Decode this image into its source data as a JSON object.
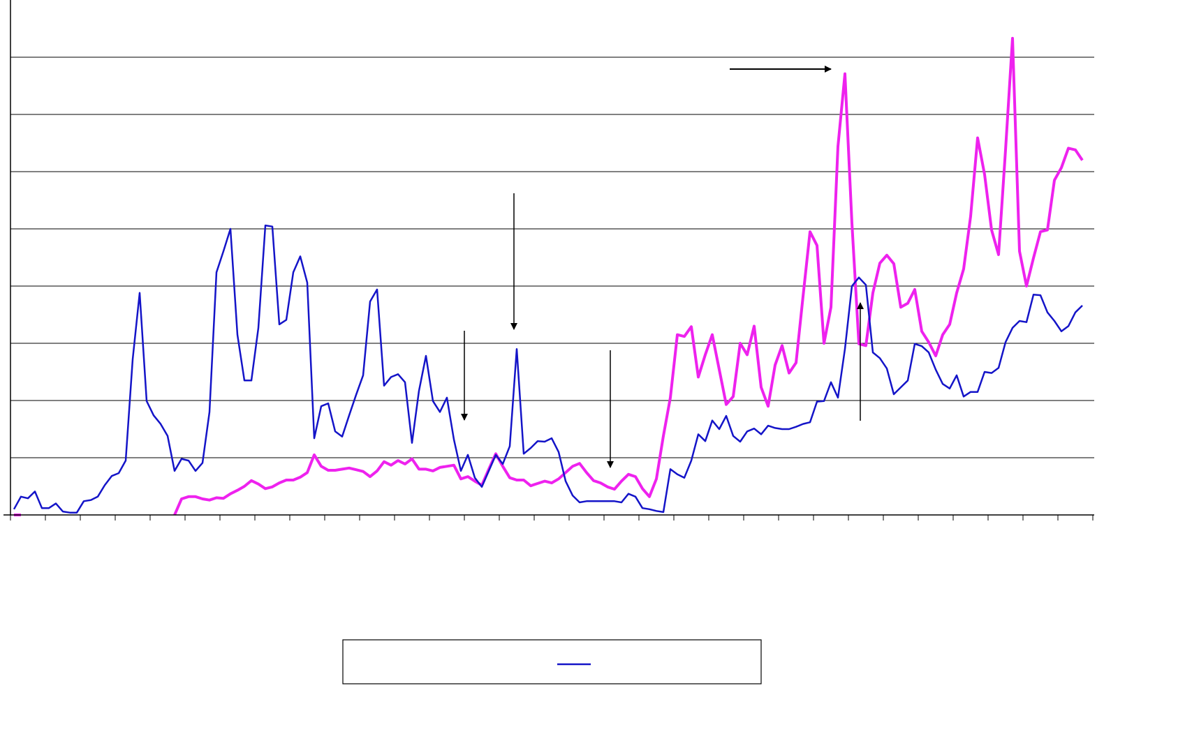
{
  "chart_data": {
    "type": "line",
    "x": [
      0,
      1,
      2,
      3,
      4,
      5,
      6,
      7,
      8,
      9,
      10,
      11,
      12,
      13,
      14,
      15,
      16,
      17,
      18,
      19,
      20,
      21,
      22,
      23,
      24,
      25,
      26,
      27,
      28,
      29,
      30,
      31,
      32,
      33,
      34,
      35,
      36,
      37,
      38,
      39,
      40,
      41,
      42,
      43,
      44,
      45,
      46,
      47,
      48,
      49,
      50,
      51,
      52,
      53,
      54,
      55,
      56,
      57,
      58,
      59,
      60,
      61,
      62,
      63,
      64,
      65,
      66,
      67,
      68,
      69,
      70,
      71,
      72,
      73,
      74,
      75,
      76,
      77,
      78,
      79,
      80,
      81,
      82,
      83,
      84,
      85,
      86,
      87,
      88,
      89,
      90,
      91,
      92,
      93,
      94,
      95,
      96,
      97,
      98,
      99,
      100,
      101,
      102,
      103,
      104,
      105,
      106,
      107,
      108,
      109,
      110,
      111,
      112,
      113,
      114,
      115,
      116,
      117,
      118,
      119,
      120,
      121,
      122,
      123,
      124,
      125,
      126,
      127,
      128,
      129,
      130,
      131,
      132,
      133,
      134,
      135,
      136,
      137,
      138,
      139,
      140,
      141,
      142,
      143,
      144,
      145,
      146,
      147,
      148,
      149,
      150,
      151,
      152,
      153
    ],
    "series": [
      {
        "color": "#1414c8",
        "values": [
          0.1,
          0.32,
          0.29,
          0.41,
          0.12,
          0.12,
          0.2,
          0.06,
          0.04,
          0.04,
          0.24,
          0.26,
          0.32,
          0.52,
          0.68,
          0.73,
          0.95,
          2.72,
          3.88,
          1.99,
          1.74,
          1.59,
          1.38,
          0.77,
          0.98,
          0.95,
          0.77,
          0.91,
          1.8,
          4.24,
          4.61,
          5,
          3.15,
          2.35,
          2.35,
          3.27,
          5.06,
          5.04,
          3.33,
          3.41,
          4.24,
          4.52,
          4.06,
          1.34,
          1.9,
          1.95,
          1.46,
          1.37,
          1.74,
          2.1,
          2.44,
          3.73,
          3.94,
          2.26,
          2.41,
          2.46,
          2.32,
          1.26,
          2.17,
          2.78,
          1.99,
          1.8,
          2.05,
          1.32,
          0.77,
          1.05,
          0.65,
          0.49,
          0.77,
          1.05,
          0.89,
          1.2,
          2.9,
          1.07,
          1.17,
          1.29,
          1.28,
          1.34,
          1.1,
          0.59,
          0.34,
          0.22,
          0.24,
          0.24,
          0.24,
          0.24,
          0.24,
          0.22,
          0.37,
          0.32,
          0.12,
          0.1,
          0.07,
          0.05,
          0.8,
          0.71,
          0.65,
          0.95,
          1.41,
          1.29,
          1.65,
          1.5,
          1.73,
          1.38,
          1.28,
          1.46,
          1.51,
          1.41,
          1.56,
          1.52,
          1.5,
          1.5,
          1.54,
          1.59,
          1.62,
          1.98,
          1.99,
          2.32,
          2.05,
          2.9,
          4,
          4.15,
          4.02,
          2.84,
          2.74,
          2.56,
          2.11,
          2.23,
          2.35,
          2.99,
          2.95,
          2.84,
          2.54,
          2.29,
          2.21,
          2.44,
          2.07,
          2.15,
          2.15,
          2.5,
          2.48,
          2.57,
          3.02,
          3.27,
          3.39,
          3.37,
          3.85,
          3.84,
          3.54,
          3.39,
          3.21,
          3.3,
          3.54,
          3.66
        ]
      },
      {
        "color": "#ee22ee",
        "values": [
          0,
          0,
          null,
          null,
          null,
          null,
          null,
          null,
          null,
          null,
          null,
          null,
          null,
          null,
          null,
          null,
          null,
          null,
          null,
          null,
          null,
          null,
          null,
          0,
          0.28,
          0.32,
          0.32,
          0.28,
          0.26,
          0.3,
          0.29,
          0.37,
          0.43,
          0.5,
          0.6,
          0.54,
          0.46,
          0.49,
          0.56,
          0.61,
          0.61,
          0.66,
          0.74,
          1.05,
          0.85,
          0.78,
          0.78,
          0.8,
          0.82,
          0.79,
          0.76,
          0.67,
          0.77,
          0.93,
          0.87,
          0.95,
          0.89,
          0.98,
          0.8,
          0.8,
          0.77,
          0.83,
          0.85,
          0.87,
          0.63,
          0.67,
          0.59,
          0.52,
          0.8,
          1.07,
          0.85,
          0.65,
          0.61,
          0.61,
          0.51,
          0.55,
          0.59,
          0.56,
          0.63,
          0.74,
          0.85,
          0.9,
          0.74,
          0.6,
          0.56,
          0.49,
          0.45,
          0.59,
          0.71,
          0.67,
          0.46,
          0.32,
          0.63,
          1.38,
          2.05,
          3.15,
          3.12,
          3.29,
          2.41,
          2.8,
          3.15,
          2.54,
          1.93,
          2.07,
          3,
          2.8,
          3.3,
          2.23,
          1.9,
          2.62,
          2.96,
          2.48,
          2.66,
          3.82,
          4.95,
          4.71,
          3,
          3.63,
          6.44,
          7.71,
          5.1,
          2.99,
          2.96,
          3.88,
          4.4,
          4.54,
          4.39,
          3.63,
          3.7,
          3.94,
          3.21,
          3.02,
          2.78,
          3.15,
          3.33,
          3.88,
          4.3,
          5.22,
          6.59,
          5.95,
          4.98,
          4.55,
          6.38,
          8.33,
          4.61,
          4,
          4.49,
          4.95,
          4.98,
          5.85,
          6.07,
          6.41,
          6.38,
          6.2
        ]
      }
    ],
    "xlim": [
      -0.5,
      154.7
    ],
    "xticks": [
      -0.5,
      4.5,
      9.5,
      14.5,
      19.5,
      24.5,
      29.5,
      34.5,
      39.5,
      44.5,
      49.5,
      54.5,
      59.5,
      64.5,
      69.5,
      74.5,
      79.5,
      84.5,
      89.5,
      94.5,
      99.5,
      104.5,
      109.5,
      114.5,
      119.5,
      124.5,
      129.5,
      134.5,
      139.5,
      144.5,
      149.5,
      154.5
    ],
    "ylim": [
      0,
      9
    ],
    "yticks": [
      0,
      1,
      2,
      3,
      4,
      5,
      6,
      7,
      8
    ],
    "grid": true,
    "legend": "bottom"
  }
}
